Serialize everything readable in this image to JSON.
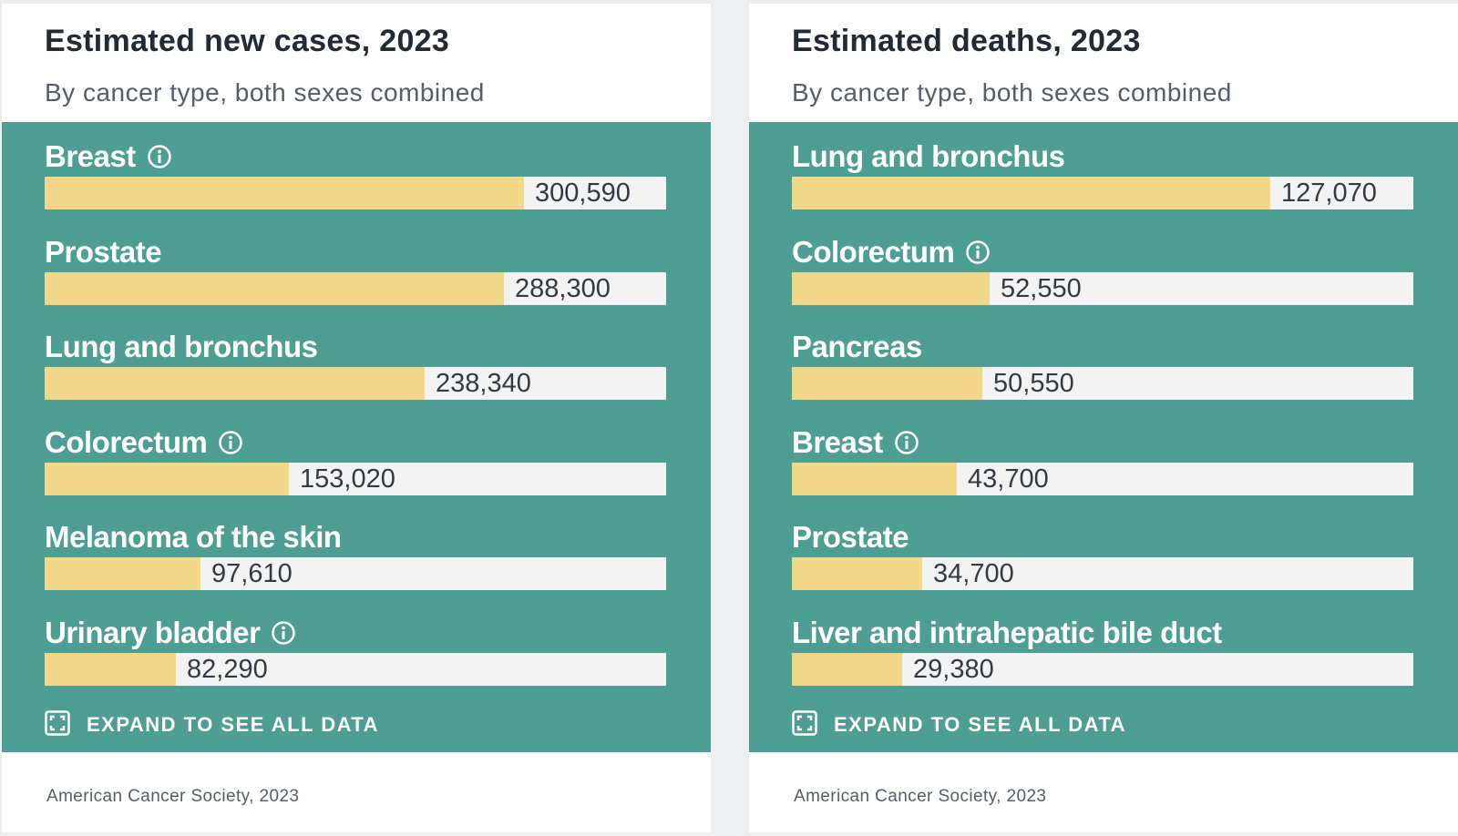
{
  "chart_data": [
    {
      "type": "bar",
      "orientation": "horizontal",
      "title": "Estimated new cases, 2023",
      "subtitle": "By cancer type, both sexes combined",
      "categories": [
        "Breast",
        "Prostate",
        "Lung and bronchus",
        "Colorectum",
        "Melanoma of the skin",
        "Urinary bladder"
      ],
      "values": [
        300590,
        288300,
        238340,
        153020,
        97610,
        82290
      ],
      "value_labels": [
        "300,590",
        "288,300",
        "238,340",
        "153,020",
        "97,610",
        "82,290"
      ],
      "info_icon": [
        true,
        false,
        false,
        true,
        false,
        true
      ],
      "xlim": [
        0,
        390000
      ],
      "expand_label": "EXPAND TO SEE ALL DATA",
      "source": "American Cancer Society, 2023"
    },
    {
      "type": "bar",
      "orientation": "horizontal",
      "title": "Estimated deaths, 2023",
      "subtitle": "By cancer type, both sexes combined",
      "categories": [
        "Lung and bronchus",
        "Colorectum",
        "Pancreas",
        "Breast",
        "Prostate",
        "Liver and intrahepatic bile duct"
      ],
      "values": [
        127070,
        52550,
        50550,
        43700,
        34700,
        29380
      ],
      "value_labels": [
        "127,070",
        "52,550",
        "50,550",
        "43,700",
        "34,700",
        "29,380"
      ],
      "info_icon": [
        false,
        true,
        false,
        true,
        false,
        false
      ],
      "xlim": [
        0,
        165000
      ],
      "expand_label": "EXPAND TO SEE ALL DATA",
      "source": "American Cancer Society, 2023"
    }
  ],
  "colors": {
    "panel": "#4f9e93",
    "bar_fill": "#f2d98a",
    "bar_track": "#f3f3f3",
    "title": "#222a33",
    "muted": "#555d66"
  }
}
